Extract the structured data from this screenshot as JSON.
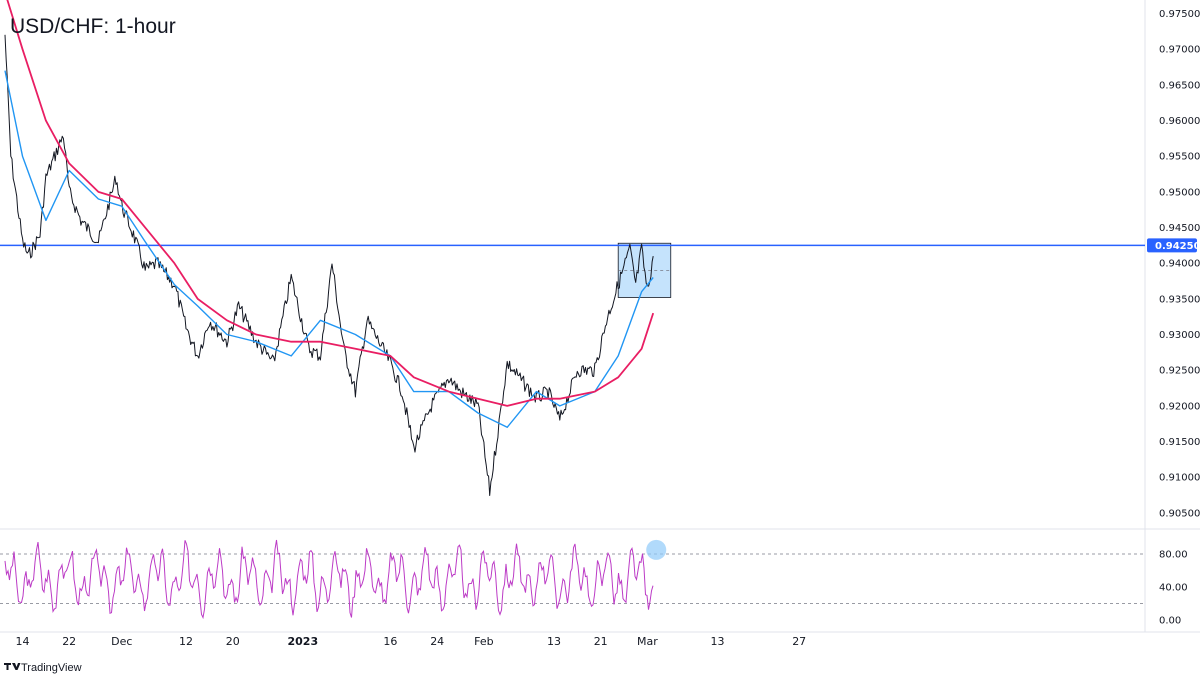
{
  "title": "USD/CHF: 1-hour",
  "brand": "TradingView",
  "colors": {
    "price": "#131722",
    "ma_fast": "#2196f3",
    "ma_slow": "#e91e63",
    "horizontal_line": "#2962ff",
    "zone_fill": "#bbdefb",
    "oscillator": "#bc3bc6",
    "grid": "#e0e3eb"
  },
  "chart_data": [
    {
      "type": "line",
      "name": "price",
      "x_tick_labels": [
        "14",
        "22",
        "Dec",
        "12",
        "20",
        "2023",
        "16",
        "24",
        "Feb",
        "13",
        "21",
        "Mar",
        "13",
        "27"
      ],
      "y_tick_labels": [
        "0.97500",
        "0.97000",
        "0.96500",
        "0.96000",
        "0.95500",
        "0.95000",
        "0.94500",
        "0.94000",
        "0.93500",
        "0.93000",
        "0.92500",
        "0.92000",
        "0.91500",
        "0.91000",
        "0.90500"
      ],
      "ylim": [
        0.904,
        0.9755
      ],
      "x_dates": [
        "2022-11-14",
        "2022-11-22",
        "2022-12-01",
        "2022-12-12",
        "2022-12-20",
        "2023-01-01",
        "2023-01-16",
        "2023-01-24",
        "2023-02-01",
        "2023-02-13",
        "2023-02-21",
        "2023-03-01",
        "2023-03-13",
        "2023-03-27"
      ],
      "series": [
        {
          "name": "",
          "x": [
            "2022-11-11",
            "2022-11-12",
            "2022-11-14",
            "2022-11-15",
            "2022-11-17",
            "2022-11-18",
            "2022-11-21",
            "2022-11-22",
            "2022-11-24",
            "2022-11-27",
            "2022-11-30",
            "2022-12-01",
            "2022-12-03",
            "2022-12-05",
            "2022-12-07",
            "2022-12-10",
            "2022-12-12",
            "2022-12-14",
            "2022-12-16",
            "2022-12-19",
            "2022-12-21",
            "2022-12-24",
            "2022-12-27",
            "2022-12-30",
            "2023-01-02",
            "2023-01-04",
            "2023-01-06",
            "2023-01-08",
            "2023-01-10",
            "2023-01-12",
            "2023-01-14",
            "2023-01-16",
            "2023-01-18",
            "2023-01-20",
            "2023-01-23",
            "2023-01-26",
            "2023-01-28",
            "2023-01-31",
            "2023-02-02",
            "2023-02-05",
            "2023-02-08",
            "2023-02-10",
            "2023-02-12",
            "2023-02-14",
            "2023-02-17",
            "2023-02-20",
            "2023-02-22",
            "2023-02-24",
            "2023-02-26",
            "2023-02-27",
            "2023-02-28",
            "2023-03-01",
            "2023-03-02"
          ],
          "y": [
            0.972,
            0.955,
            0.943,
            0.941,
            0.944,
            0.952,
            0.958,
            0.95,
            0.946,
            0.943,
            0.952,
            0.948,
            0.944,
            0.939,
            0.94,
            0.937,
            0.931,
            0.927,
            0.932,
            0.929,
            0.934,
            0.929,
            0.926,
            0.938,
            0.928,
            0.927,
            0.94,
            0.928,
            0.922,
            0.932,
            0.929,
            0.926,
            0.922,
            0.914,
            0.92,
            0.924,
            0.922,
            0.92,
            0.908,
            0.926,
            0.923,
            0.921,
            0.922,
            0.918,
            0.925,
            0.925,
            0.932,
            0.937,
            0.942,
            0.937,
            0.942,
            0.936,
            0.941
          ]
        },
        {
          "name": "",
          "x": [
            "2022-11-11",
            "2022-11-14",
            "2022-11-18",
            "2022-11-22",
            "2022-11-27",
            "2022-12-01",
            "2022-12-05",
            "2022-12-10",
            "2022-12-14",
            "2022-12-19",
            "2022-12-24",
            "2022-12-30",
            "2023-01-04",
            "2023-01-10",
            "2023-01-16",
            "2023-01-20",
            "2023-01-26",
            "2023-01-31",
            "2023-02-05",
            "2023-02-10",
            "2023-02-14",
            "2023-02-20",
            "2023-02-24",
            "2023-02-28",
            "2023-03-02"
          ],
          "y": [
            0.967,
            0.955,
            0.946,
            0.953,
            0.949,
            0.948,
            0.943,
            0.937,
            0.934,
            0.93,
            0.929,
            0.927,
            0.932,
            0.93,
            0.927,
            0.922,
            0.922,
            0.919,
            0.917,
            0.922,
            0.92,
            0.922,
            0.927,
            0.936,
            0.938
          ]
        },
        {
          "name": "",
          "x": [
            "2022-11-11",
            "2022-11-14",
            "2022-11-18",
            "2022-11-22",
            "2022-11-27",
            "2022-12-01",
            "2022-12-05",
            "2022-12-10",
            "2022-12-14",
            "2022-12-19",
            "2022-12-24",
            "2022-12-30",
            "2023-01-04",
            "2023-01-10",
            "2023-01-16",
            "2023-01-20",
            "2023-01-26",
            "2023-01-31",
            "2023-02-05",
            "2023-02-10",
            "2023-02-14",
            "2023-02-20",
            "2023-02-24",
            "2023-02-28",
            "2023-03-02"
          ],
          "y": [
            0.978,
            0.97,
            0.96,
            0.954,
            0.95,
            0.949,
            0.945,
            0.94,
            0.935,
            0.932,
            0.93,
            0.929,
            0.929,
            0.928,
            0.927,
            0.924,
            0.922,
            0.921,
            0.92,
            0.921,
            0.921,
            0.922,
            0.924,
            0.928,
            0.933
          ]
        }
      ],
      "horizontal_line": {
        "value": 0.9425,
        "label": "0.94250"
      },
      "zone": {
        "x": [
          "2023-02-24",
          "2023-03-05"
        ],
        "y": [
          0.9352,
          0.9428
        ],
        "midline": 0.939
      },
      "grid": false,
      "legend": "none"
    },
    {
      "type": "line",
      "name": "oscillator",
      "y_tick_labels": [
        "80.00",
        "40.00",
        "0.00"
      ],
      "ylim": [
        0,
        100
      ],
      "reference_levels": [
        80,
        20
      ],
      "highlight_point": {
        "x": "2023-03-02",
        "y": 85
      },
      "x": [
        "2022-11-11",
        "2022-11-16",
        "2022-11-21",
        "2022-11-26",
        "2022-12-01",
        "2022-12-06",
        "2022-12-11",
        "2022-12-16",
        "2022-12-21",
        "2022-12-26",
        "2022-12-31",
        "2023-01-05",
        "2023-01-10",
        "2023-01-15",
        "2023-01-20",
        "2023-01-25",
        "2023-01-30",
        "2023-02-04",
        "2023-02-09",
        "2023-02-14",
        "2023-02-19",
        "2023-02-24",
        "2023-02-27",
        "2023-03-02"
      ],
      "y": [
        60,
        15,
        85,
        10,
        90,
        20,
        80,
        12,
        88,
        18,
        75,
        10,
        92,
        15,
        85,
        12,
        88,
        10,
        86,
        14,
        82,
        90,
        8,
        85
      ]
    }
  ]
}
